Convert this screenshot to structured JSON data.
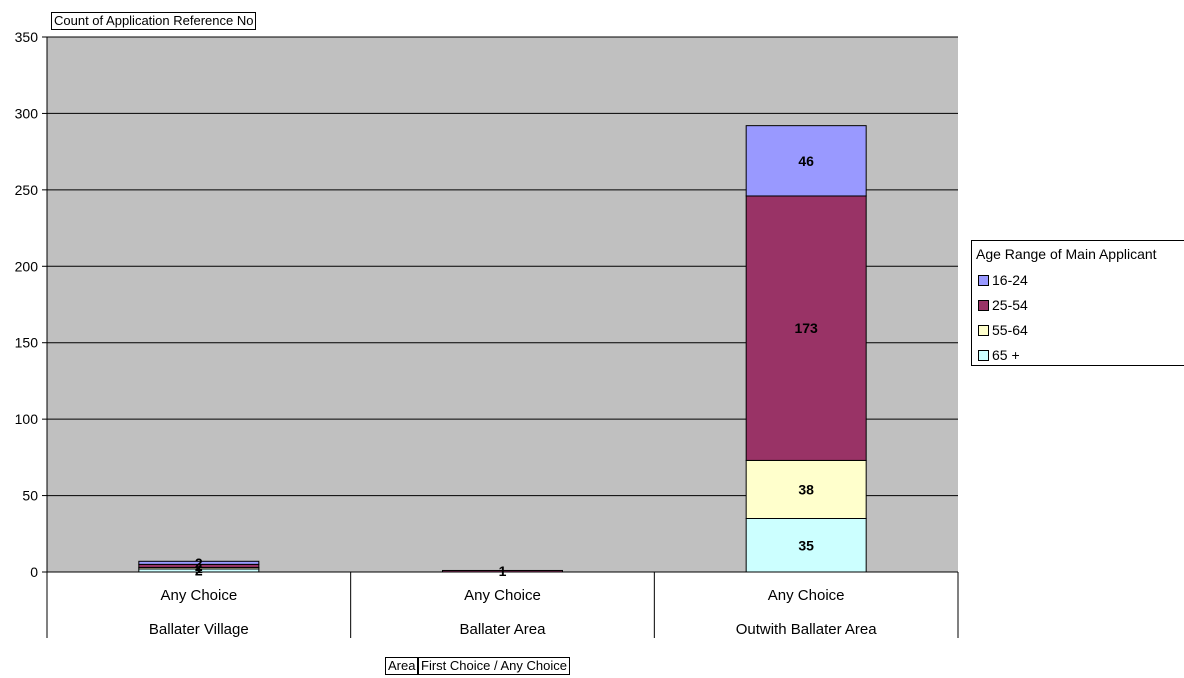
{
  "chart_data": {
    "type": "bar",
    "stacked": true,
    "ylabel": "Count of Application Reference No",
    "ylim": [
      0,
      350
    ],
    "yticks": [
      0,
      50,
      100,
      150,
      200,
      250,
      300,
      350
    ],
    "grid": true,
    "legend_title": "Age Range of Main Applicant",
    "legend_position": "right",
    "x_fields": [
      "Area",
      "First Choice / Any Choice"
    ],
    "categories": [
      {
        "choice": "Any Choice",
        "area": "Ballater Village"
      },
      {
        "choice": "Any Choice",
        "area": "Ballater Area"
      },
      {
        "choice": "Any Choice",
        "area": "Outwith Ballater Area"
      }
    ],
    "series": [
      {
        "name": "65 +",
        "color": "#CCFFFF",
        "values": [
          2,
          0,
          35
        ]
      },
      {
        "name": "55-64",
        "color": "#FFFFCC",
        "values": [
          1,
          0,
          38
        ]
      },
      {
        "name": "25-54",
        "color": "#993366",
        "values": [
          2,
          1,
          173
        ]
      },
      {
        "name": "16-24",
        "color": "#9999FF",
        "values": [
          2,
          0,
          46
        ]
      }
    ],
    "plot_background": "#C0C0C0"
  }
}
